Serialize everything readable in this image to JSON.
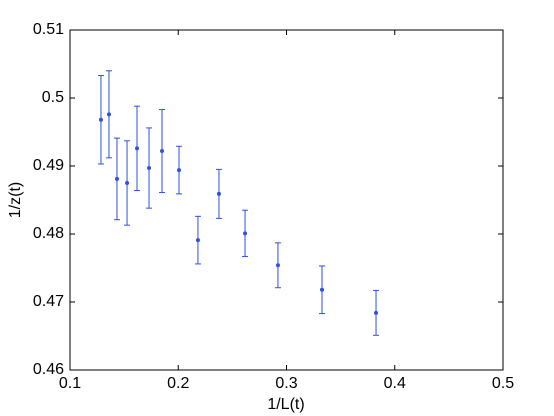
{
  "chart_data": {
    "type": "errorbar",
    "xlabel": "1/L(t)",
    "ylabel": "1/z(t)",
    "x": [
      0.1286,
      0.136,
      0.1434,
      0.1527,
      0.1619,
      0.173,
      0.185,
      0.2007,
      0.2182,
      0.2376,
      0.2617,
      0.2921,
      0.3328,
      0.3827
    ],
    "series": [
      {
        "color": "#3050e0",
        "values": [
          0.4968,
          0.4976,
          0.4881,
          0.4875,
          0.4926,
          0.4897,
          0.4922,
          0.4894,
          0.4791,
          0.4859,
          0.4801,
          0.4754,
          0.4718,
          0.4684
        ],
        "errors": [
          0.0065,
          0.0064,
          0.006,
          0.0062,
          0.0062,
          0.0059,
          0.0061,
          0.0035,
          0.0035,
          0.0036,
          0.0034,
          0.0033,
          0.0035,
          0.0033
        ]
      }
    ],
    "xlim": [
      0.1,
      0.5
    ],
    "xticks": [
      0.1,
      0.2,
      0.3,
      0.4,
      0.5
    ],
    "ylim": [
      0.46,
      0.51
    ],
    "yticks": [
      0.46,
      0.47,
      0.48,
      0.49,
      0.5,
      0.51
    ]
  }
}
